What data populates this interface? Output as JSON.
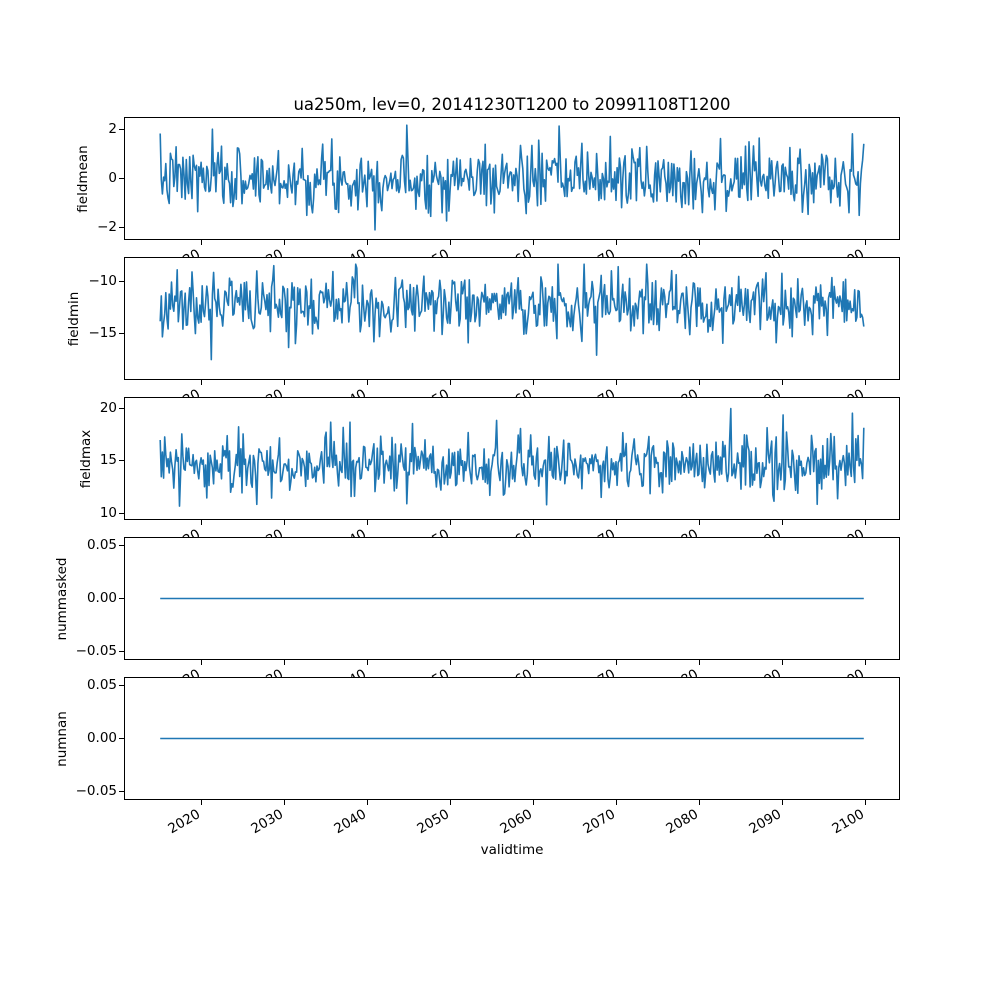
{
  "figure": {
    "title": "ua250m, lev=0, 20141230T1200 to 20991108T1200",
    "xlabel": "validtime",
    "line_color": "#1f77b4",
    "spine_color": "#000000",
    "background": "#ffffff",
    "x_axis_range": [
      2010.75,
      2104.1
    ],
    "x_data_range": [
      2014.99,
      2099.85
    ],
    "xticks": [
      2020,
      2030,
      2040,
      2050,
      2060,
      2070,
      2080,
      2090,
      2100
    ],
    "xtick_labels": [
      "2020",
      "2030",
      "2040",
      "2050",
      "2060",
      "2070",
      "2080",
      "2090",
      "2100"
    ]
  },
  "chart_data": [
    {
      "type": "line",
      "ylabel": "fieldmean",
      "ylim": [
        -2.45,
        2.45
      ],
      "yticks": [
        2,
        0,
        -2
      ],
      "ytick_labels": [
        "2",
        "0",
        "−2"
      ],
      "series": {
        "name": "fieldmean",
        "kind": "noise",
        "n": 620,
        "seed": 7,
        "mean": 0,
        "std": 0.66,
        "spike_prob": 0,
        "spike_scale": 0,
        "spike_dir": 1,
        "min": -2.3,
        "max": 2.25
      }
    },
    {
      "type": "line",
      "ylabel": "fieldmin",
      "ylim": [
        -19.35,
        -7.7
      ],
      "yticks": [
        -10,
        -15
      ],
      "ytick_labels": [
        "−10",
        "−15"
      ],
      "series": {
        "name": "fieldmin",
        "kind": "noise",
        "n": 620,
        "seed": 11,
        "mean": -12.2,
        "std": 1.4,
        "spike_prob": 0.06,
        "spike_scale": 1.9,
        "spike_dir": -1,
        "min": -18.85,
        "max": -8.3
      }
    },
    {
      "type": "line",
      "ylabel": "fieldmax",
      "ylim": [
        9.5,
        20.95
      ],
      "yticks": [
        20,
        15,
        10
      ],
      "ytick_labels": [
        "20",
        "15",
        "10"
      ],
      "series": {
        "name": "fieldmax",
        "kind": "noise",
        "n": 620,
        "seed": 23,
        "mean": 14.4,
        "std": 1.3,
        "spike_prob": 0.06,
        "spike_scale": 1.8,
        "spike_dir": 1,
        "min": 10.3,
        "max": 19.95
      }
    },
    {
      "type": "line",
      "ylabel": "nummasked",
      "ylim": [
        -0.0575,
        0.0575
      ],
      "yticks": [
        0.05,
        0,
        -0.05
      ],
      "ytick_labels": [
        "0.05",
        "0.00",
        "−0.05"
      ],
      "series": {
        "name": "nummasked",
        "kind": "constant",
        "n": 620,
        "value": 0,
        "min": 0,
        "max": 0
      }
    },
    {
      "type": "line",
      "ylabel": "numnan",
      "ylim": [
        -0.0575,
        0.0575
      ],
      "yticks": [
        0.05,
        0,
        -0.05
      ],
      "ytick_labels": [
        "0.05",
        "0.00",
        "−0.05"
      ],
      "series": {
        "name": "numnan",
        "kind": "constant",
        "n": 620,
        "value": 0,
        "min": 0,
        "max": 0
      }
    }
  ]
}
